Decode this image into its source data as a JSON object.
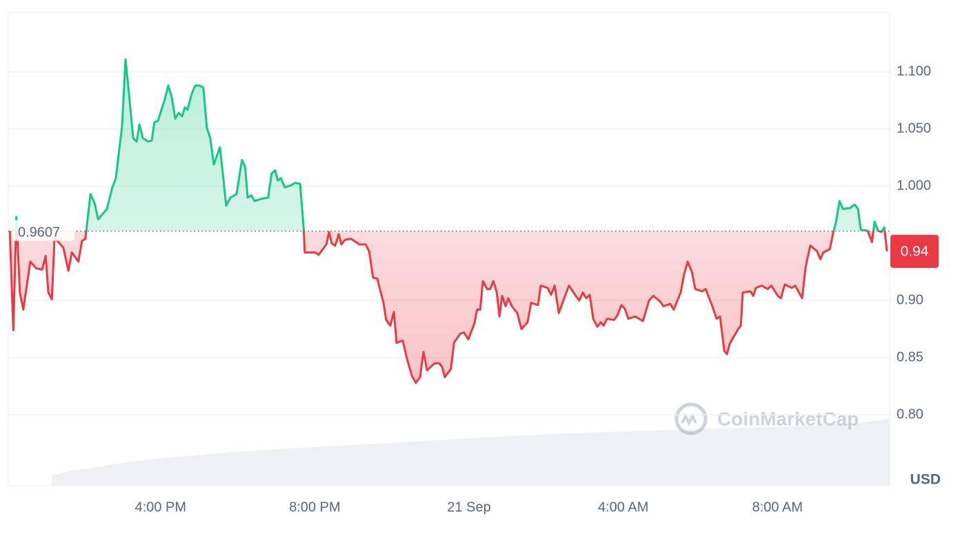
{
  "chart_data": {
    "type": "line",
    "x": [
      -11.91,
      -11.82,
      -11.74,
      -11.65,
      -11.56,
      -11.38,
      -11.22,
      -11.07,
      -10.98,
      -10.91,
      -10.82,
      -10.75,
      -10.52,
      -10.39,
      -10.3,
      -10.13,
      -10.04,
      -9.95,
      -9.82,
      -9.71,
      -9.62,
      -9.39,
      -9.25,
      -9.16,
      -9.09,
      -9.0,
      -8.91,
      -8.82,
      -8.71,
      -8.62,
      -8.55,
      -8.46,
      -8.32,
      -8.23,
      -8.16,
      -8.07,
      -7.89,
      -7.8,
      -7.71,
      -7.62,
      -7.53,
      -7.44,
      -7.37,
      -7.3,
      -7.19,
      -7.1,
      -6.98,
      -6.89,
      -6.8,
      -6.71,
      -6.62,
      -6.46,
      -6.37,
      -6.3,
      -6.19,
      -6.03,
      -5.89,
      -5.81,
      -5.74,
      -5.65,
      -5.56,
      -5.38,
      -5.21,
      -5.12,
      -5.03,
      -4.96,
      -4.88,
      -4.78,
      -4.6,
      -4.51,
      -4.38,
      -4.29,
      -4.26,
      -3.99,
      -3.9,
      -3.7,
      -3.63,
      -3.56,
      -3.47,
      -3.38,
      -3.31,
      -3.22,
      -3.06,
      -2.84,
      -2.68,
      -2.59,
      -2.49,
      -2.38,
      -2.22,
      -2.15,
      -2.04,
      -1.95,
      -1.88,
      -1.72,
      -1.61,
      -1.48,
      -1.38,
      -1.27,
      -1.18,
      -1.09,
      -0.89,
      -0.77,
      -0.7,
      -0.63,
      -0.47,
      -0.39,
      -0.23,
      -0.13,
      -0.02,
      0.14,
      0.21,
      0.29,
      0.36,
      0.47,
      0.55,
      0.63,
      0.72,
      0.79,
      0.86,
      0.95,
      1.02,
      1.11,
      1.25,
      1.36,
      1.52,
      1.61,
      1.79,
      1.86,
      2.04,
      2.13,
      2.22,
      2.33,
      2.49,
      2.59,
      2.77,
      2.86,
      2.95,
      3.04,
      3.13,
      3.22,
      3.33,
      3.42,
      3.49,
      3.58,
      3.76,
      3.85,
      3.95,
      4.04,
      4.13,
      4.31,
      4.51,
      4.58,
      4.67,
      4.78,
      4.96,
      5.04,
      5.22,
      5.31,
      5.49,
      5.58,
      5.67,
      5.78,
      5.87,
      6.05,
      6.14,
      6.31,
      6.42,
      6.51,
      6.62,
      6.69,
      6.76,
      6.98,
      7.05,
      7.1,
      7.3,
      7.37,
      7.44,
      7.59,
      7.75,
      7.84,
      8.01,
      8.09,
      8.19,
      8.37,
      8.46,
      8.64,
      8.73,
      8.85,
      9.03,
      9.11,
      9.19,
      9.36,
      9.45,
      9.52,
      9.61,
      9.7,
      9.89,
      10.0,
      10.09,
      10.16,
      10.34,
      10.45,
      10.52,
      10.61,
      10.7,
      10.77,
      10.84
    ],
    "values": [
      0.961,
      0.874,
      0.973,
      0.907,
      0.892,
      0.934,
      0.928,
      0.927,
      0.939,
      0.907,
      0.901,
      0.955,
      0.946,
      0.926,
      0.942,
      0.934,
      0.952,
      0.954,
      0.993,
      0.985,
      0.971,
      0.98,
      0.999,
      1.007,
      1.027,
      1.052,
      1.111,
      1.081,
      1.042,
      1.039,
      1.054,
      1.042,
      1.039,
      1.04,
      1.056,
      1.057,
      1.076,
      1.088,
      1.078,
      1.059,
      1.064,
      1.061,
      1.069,
      1.067,
      1.081,
      1.088,
      1.088,
      1.086,
      1.051,
      1.042,
      1.019,
      1.034,
      1.006,
      0.983,
      0.99,
      0.993,
      1.023,
      1.017,
      0.99,
      0.992,
      0.987,
      0.989,
      0.99,
      1.011,
      1.014,
      1.005,
      1.007,
      0.999,
      1.001,
      1.003,
      1.002,
      0.964,
      0.942,
      0.942,
      0.94,
      0.949,
      0.96,
      0.95,
      0.948,
      0.958,
      0.949,
      0.953,
      0.954,
      0.949,
      0.949,
      0.943,
      0.92,
      0.919,
      0.898,
      0.883,
      0.878,
      0.89,
      0.863,
      0.865,
      0.849,
      0.834,
      0.828,
      0.833,
      0.855,
      0.839,
      0.845,
      0.845,
      0.842,
      0.833,
      0.84,
      0.863,
      0.871,
      0.872,
      0.866,
      0.88,
      0.892,
      0.892,
      0.917,
      0.91,
      0.91,
      0.917,
      0.907,
      0.886,
      0.904,
      0.895,
      0.902,
      0.895,
      0.889,
      0.875,
      0.881,
      0.898,
      0.896,
      0.913,
      0.911,
      0.905,
      0.913,
      0.889,
      0.904,
      0.913,
      0.904,
      0.9,
      0.907,
      0.902,
      0.905,
      0.884,
      0.877,
      0.881,
      0.878,
      0.884,
      0.883,
      0.887,
      0.896,
      0.893,
      0.884,
      0.886,
      0.882,
      0.89,
      0.9,
      0.904,
      0.899,
      0.895,
      0.897,
      0.892,
      0.907,
      0.923,
      0.934,
      0.925,
      0.91,
      0.908,
      0.91,
      0.895,
      0.884,
      0.886,
      0.856,
      0.853,
      0.862,
      0.875,
      0.878,
      0.907,
      0.908,
      0.904,
      0.911,
      0.913,
      0.91,
      0.913,
      0.904,
      0.902,
      0.914,
      0.911,
      0.913,
      0.902,
      0.929,
      0.948,
      0.943,
      0.936,
      0.942,
      0.945,
      0.96,
      0.969,
      0.987,
      0.98,
      0.981,
      0.984,
      0.98,
      0.962,
      0.961,
      0.951,
      0.969,
      0.961,
      0.96,
      0.964,
      0.943
    ],
    "baseline": 0.9607,
    "current": {
      "value": 0.943,
      "label": "0.94"
    },
    "up_color": "#16c784",
    "down_color": "#ea3943",
    "volume": {
      "x": [
        -11.95,
        -10.85,
        -10.8,
        -10.4,
        -9.5,
        -8.9,
        -8,
        -6,
        -4,
        -2,
        0,
        2,
        4,
        6,
        8,
        10,
        10.91
      ],
      "values": [
        0,
        0,
        15,
        22,
        29,
        35,
        41,
        51,
        58,
        64,
        71,
        77,
        81,
        85,
        88,
        93,
        100
      ]
    },
    "xlim": [
      -11.95,
      10.91
    ],
    "xticks": [
      {
        "value": -8,
        "label": "4:00 PM"
      },
      {
        "value": -4,
        "label": "8:00 PM"
      },
      {
        "value": 0,
        "label": "21 Sep"
      },
      {
        "value": 4,
        "label": "4:00 AM"
      },
      {
        "value": 8,
        "label": "8:00 AM"
      }
    ],
    "ylim": [
      0.738,
      1.152
    ],
    "yticks": [
      {
        "value": 0.8,
        "label": "0.80"
      },
      {
        "value": 0.85,
        "label": "0.85"
      },
      {
        "value": 0.9,
        "label": "0.90"
      },
      {
        "value": 1.0,
        "label": "1.000"
      },
      {
        "value": 1.05,
        "label": "1.050"
      },
      {
        "value": 1.1,
        "label": "1.100"
      }
    ],
    "grid": true,
    "unit": "USD",
    "watermark": "CoinMarketCap"
  }
}
